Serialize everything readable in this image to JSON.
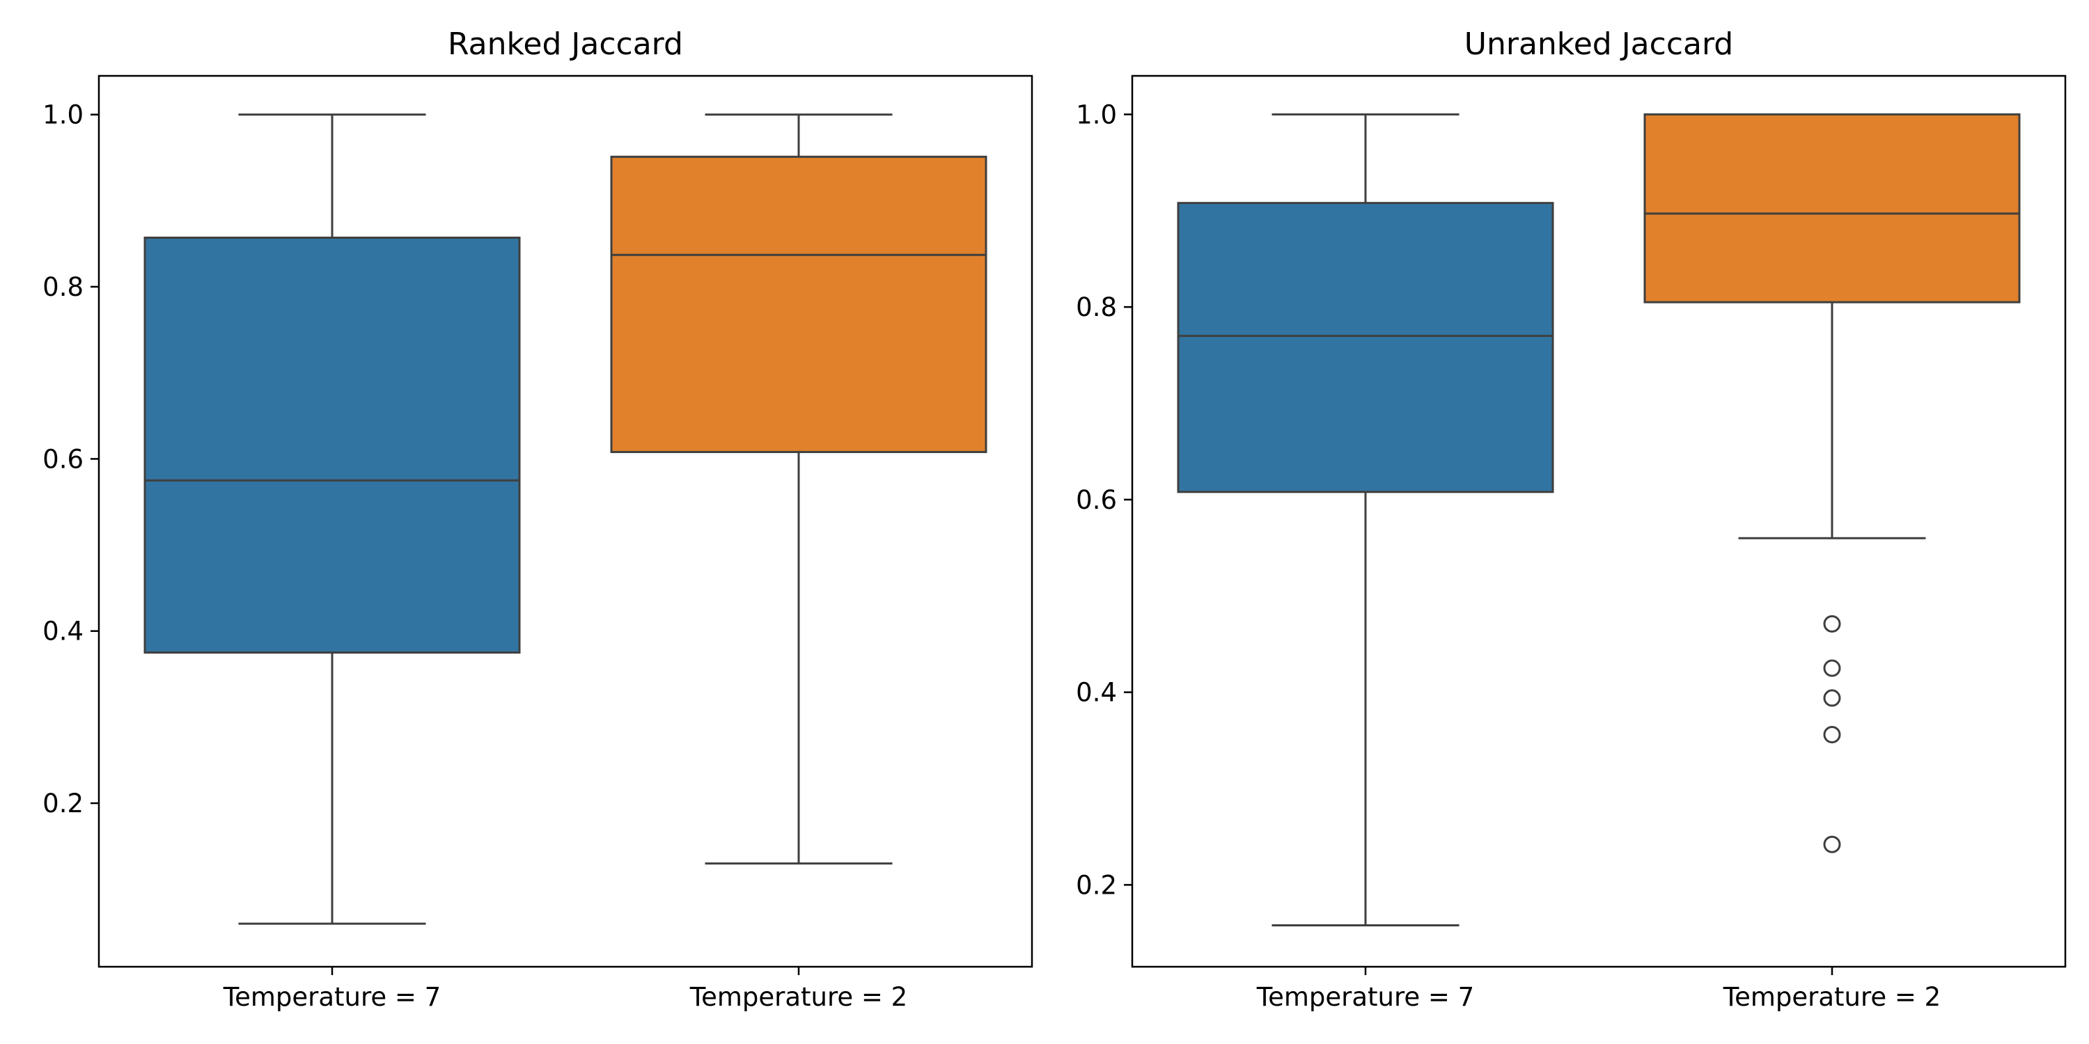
{
  "chart_data": [
    {
      "type": "box",
      "title": "Ranked Jaccard",
      "xlabel": "",
      "ylabel": "",
      "ylim": [
        0.01,
        1.045
      ],
      "yticks": [
        0.2,
        0.4,
        0.6,
        0.8,
        1.0
      ],
      "ytick_labels": [
        "0.2",
        "0.4",
        "0.6",
        "0.8",
        "1.0"
      ],
      "categories": [
        "Temperature = 7",
        "Temperature = 2"
      ],
      "boxes": [
        {
          "category": "Temperature = 7",
          "color": "#3274a1",
          "whisker_low": 0.06,
          "q1": 0.375,
          "median": 0.575,
          "q3": 0.857,
          "whisker_high": 1.0,
          "outliers": []
        },
        {
          "category": "Temperature = 2",
          "color": "#e1812c",
          "whisker_low": 0.13,
          "q1": 0.608,
          "median": 0.837,
          "q3": 0.951,
          "whisker_high": 1.0,
          "outliers": []
        }
      ]
    },
    {
      "type": "box",
      "title": "Unranked Jaccard",
      "xlabel": "",
      "ylabel": "",
      "ylim": [
        0.115,
        1.04
      ],
      "yticks": [
        0.2,
        0.4,
        0.6,
        0.8,
        1.0
      ],
      "ytick_labels": [
        "0.2",
        "0.4",
        "0.6",
        "0.8",
        "1.0"
      ],
      "categories": [
        "Temperature = 7",
        "Temperature = 2"
      ],
      "boxes": [
        {
          "category": "Temperature = 7",
          "color": "#3274a1",
          "whisker_low": 0.158,
          "q1": 0.608,
          "median": 0.77,
          "q3": 0.908,
          "whisker_high": 1.0,
          "outliers": []
        },
        {
          "category": "Temperature = 2",
          "color": "#e1812c",
          "whisker_low": 0.56,
          "q1": 0.805,
          "median": 0.897,
          "q3": 1.0,
          "whisker_high": 1.0,
          "outliers": [
            0.471,
            0.425,
            0.394,
            0.356,
            0.242
          ]
        }
      ]
    }
  ]
}
